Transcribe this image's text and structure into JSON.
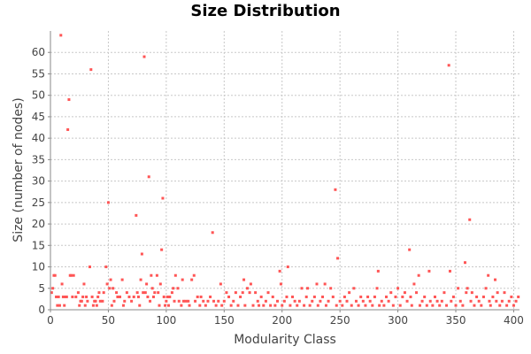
{
  "chart_data": {
    "type": "scatter",
    "title": "Size Distribution",
    "xlabel": "Modularity Class",
    "ylabel": "Size (number of nodes)",
    "xlim": [
      0,
      405
    ],
    "ylim": [
      0,
      65
    ],
    "xticks": [
      0,
      50,
      100,
      150,
      200,
      250,
      300,
      350,
      400
    ],
    "yticks": [
      0,
      5,
      10,
      15,
      20,
      25,
      30,
      35,
      40,
      45,
      50,
      55,
      60
    ],
    "grid": true,
    "colors": {
      "points": "#ff5555",
      "grid": "#c8c8c8",
      "axis": "#888888"
    },
    "series": [
      {
        "points": [
          [
            1,
            4
          ],
          [
            2,
            5
          ],
          [
            3,
            8
          ],
          [
            4,
            8
          ],
          [
            5,
            3
          ],
          [
            6,
            1
          ],
          [
            7,
            3
          ],
          [
            8,
            1
          ],
          [
            9,
            64
          ],
          [
            10,
            6
          ],
          [
            11,
            3
          ],
          [
            12,
            1
          ],
          [
            13,
            3
          ],
          [
            14,
            3
          ],
          [
            15,
            42
          ],
          [
            16,
            49
          ],
          [
            17,
            8
          ],
          [
            18,
            8
          ],
          [
            19,
            3
          ],
          [
            20,
            8
          ],
          [
            22,
            3
          ],
          [
            24,
            4
          ],
          [
            25,
            1
          ],
          [
            26,
            2
          ],
          [
            27,
            2
          ],
          [
            28,
            3
          ],
          [
            29,
            6
          ],
          [
            30,
            1
          ],
          [
            31,
            3
          ],
          [
            32,
            2
          ],
          [
            34,
            10
          ],
          [
            35,
            56
          ],
          [
            36,
            3
          ],
          [
            37,
            1
          ],
          [
            38,
            2
          ],
          [
            39,
            2
          ],
          [
            40,
            1
          ],
          [
            41,
            3
          ],
          [
            42,
            4
          ],
          [
            43,
            2
          ],
          [
            45,
            2
          ],
          [
            46,
            4
          ],
          [
            48,
            10
          ],
          [
            49,
            6
          ],
          [
            50,
            25
          ],
          [
            51,
            5
          ],
          [
            52,
            7
          ],
          [
            53,
            1
          ],
          [
            54,
            5
          ],
          [
            55,
            2
          ],
          [
            57,
            4
          ],
          [
            58,
            3
          ],
          [
            60,
            3
          ],
          [
            62,
            7
          ],
          [
            63,
            1
          ],
          [
            64,
            2
          ],
          [
            66,
            4
          ],
          [
            68,
            3
          ],
          [
            70,
            2
          ],
          [
            72,
            3
          ],
          [
            74,
            22
          ],
          [
            75,
            4
          ],
          [
            76,
            3
          ],
          [
            77,
            1
          ],
          [
            78,
            7
          ],
          [
            79,
            13
          ],
          [
            80,
            4
          ],
          [
            81,
            59
          ],
          [
            82,
            4
          ],
          [
            83,
            6
          ],
          [
            84,
            3
          ],
          [
            85,
            31
          ],
          [
            86,
            2
          ],
          [
            87,
            8
          ],
          [
            88,
            5
          ],
          [
            89,
            3
          ],
          [
            90,
            4
          ],
          [
            92,
            8
          ],
          [
            93,
            4
          ],
          [
            94,
            1
          ],
          [
            95,
            6
          ],
          [
            96,
            14
          ],
          [
            97,
            26
          ],
          [
            98,
            3
          ],
          [
            99,
            1
          ],
          [
            100,
            2
          ],
          [
            101,
            3
          ],
          [
            102,
            1
          ],
          [
            103,
            3
          ],
          [
            105,
            4
          ],
          [
            106,
            5
          ],
          [
            107,
            2
          ],
          [
            108,
            8
          ],
          [
            110,
            5
          ],
          [
            111,
            2
          ],
          [
            113,
            1
          ],
          [
            114,
            7
          ],
          [
            115,
            2
          ],
          [
            117,
            2
          ],
          [
            119,
            2
          ],
          [
            120,
            1
          ],
          [
            122,
            7
          ],
          [
            124,
            8
          ],
          [
            125,
            2
          ],
          [
            127,
            3
          ],
          [
            129,
            1
          ],
          [
            130,
            3
          ],
          [
            132,
            2
          ],
          [
            134,
            1
          ],
          [
            136,
            2
          ],
          [
            138,
            3
          ],
          [
            140,
            18
          ],
          [
            141,
            2
          ],
          [
            143,
            1
          ],
          [
            145,
            2
          ],
          [
            147,
            6
          ],
          [
            148,
            1
          ],
          [
            150,
            2
          ],
          [
            152,
            4
          ],
          [
            154,
            3
          ],
          [
            156,
            1
          ],
          [
            158,
            2
          ],
          [
            160,
            4
          ],
          [
            162,
            1
          ],
          [
            164,
            3
          ],
          [
            166,
            4
          ],
          [
            167,
            7
          ],
          [
            168,
            1
          ],
          [
            170,
            5
          ],
          [
            172,
            4
          ],
          [
            173,
            6
          ],
          [
            175,
            1
          ],
          [
            177,
            4
          ],
          [
            179,
            2
          ],
          [
            180,
            1
          ],
          [
            182,
            3
          ],
          [
            184,
            1
          ],
          [
            186,
            2
          ],
          [
            188,
            4
          ],
          [
            190,
            1
          ],
          [
            192,
            3
          ],
          [
            194,
            1
          ],
          [
            196,
            2
          ],
          [
            198,
            9
          ],
          [
            199,
            6
          ],
          [
            200,
            1
          ],
          [
            202,
            2
          ],
          [
            204,
            3
          ],
          [
            205,
            10
          ],
          [
            207,
            1
          ],
          [
            209,
            3
          ],
          [
            211,
            2
          ],
          [
            213,
            1
          ],
          [
            215,
            2
          ],
          [
            217,
            5
          ],
          [
            219,
            1
          ],
          [
            221,
            3
          ],
          [
            222,
            5
          ],
          [
            224,
            1
          ],
          [
            226,
            2
          ],
          [
            228,
            3
          ],
          [
            230,
            6
          ],
          [
            231,
            1
          ],
          [
            233,
            2
          ],
          [
            235,
            3
          ],
          [
            237,
            6
          ],
          [
            238,
            1
          ],
          [
            240,
            2
          ],
          [
            242,
            5
          ],
          [
            244,
            3
          ],
          [
            246,
            28
          ],
          [
            247,
            1
          ],
          [
            248,
            12
          ],
          [
            250,
            2
          ],
          [
            252,
            1
          ],
          [
            254,
            3
          ],
          [
            256,
            2
          ],
          [
            258,
            4
          ],
          [
            260,
            1
          ],
          [
            262,
            5
          ],
          [
            264,
            2
          ],
          [
            266,
            1
          ],
          [
            268,
            3
          ],
          [
            270,
            2
          ],
          [
            272,
            1
          ],
          [
            274,
            3
          ],
          [
            276,
            2
          ],
          [
            278,
            1
          ],
          [
            280,
            3
          ],
          [
            282,
            5
          ],
          [
            283,
            9
          ],
          [
            284,
            1
          ],
          [
            286,
            2
          ],
          [
            288,
            1
          ],
          [
            290,
            3
          ],
          [
            292,
            2
          ],
          [
            294,
            4
          ],
          [
            296,
            1
          ],
          [
            298,
            3
          ],
          [
            300,
            5
          ],
          [
            302,
            1
          ],
          [
            304,
            3
          ],
          [
            306,
            4
          ],
          [
            308,
            2
          ],
          [
            310,
            14
          ],
          [
            311,
            3
          ],
          [
            312,
            1
          ],
          [
            314,
            6
          ],
          [
            316,
            4
          ],
          [
            318,
            8
          ],
          [
            319,
            1
          ],
          [
            321,
            2
          ],
          [
            323,
            3
          ],
          [
            325,
            1
          ],
          [
            327,
            9
          ],
          [
            328,
            2
          ],
          [
            330,
            1
          ],
          [
            332,
            3
          ],
          [
            334,
            2
          ],
          [
            336,
            1
          ],
          [
            338,
            2
          ],
          [
            340,
            4
          ],
          [
            342,
            1
          ],
          [
            344,
            57
          ],
          [
            345,
            9
          ],
          [
            346,
            2
          ],
          [
            348,
            3
          ],
          [
            350,
            1
          ],
          [
            352,
            5
          ],
          [
            354,
            2
          ],
          [
            356,
            1
          ],
          [
            358,
            11
          ],
          [
            359,
            4
          ],
          [
            360,
            5
          ],
          [
            362,
            21
          ],
          [
            363,
            2
          ],
          [
            364,
            4
          ],
          [
            366,
            1
          ],
          [
            368,
            3
          ],
          [
            370,
            2
          ],
          [
            372,
            1
          ],
          [
            374,
            3
          ],
          [
            376,
            5
          ],
          [
            378,
            8
          ],
          [
            379,
            2
          ],
          [
            380,
            1
          ],
          [
            382,
            3
          ],
          [
            384,
            7
          ],
          [
            385,
            2
          ],
          [
            386,
            4
          ],
          [
            388,
            1
          ],
          [
            390,
            2
          ],
          [
            392,
            4
          ],
          [
            394,
            1
          ],
          [
            396,
            2
          ],
          [
            398,
            3
          ],
          [
            400,
            1
          ],
          [
            402,
            2
          ],
          [
            404,
            3
          ]
        ]
      }
    ]
  }
}
